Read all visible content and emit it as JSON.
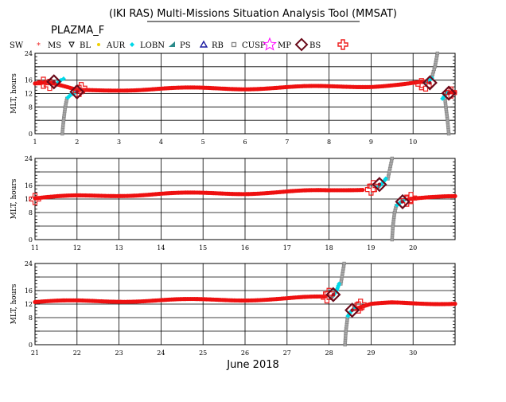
{
  "title": "(IKI RAS) Multi-Missions Situation Analysis Tool (MMSAT)",
  "mission": "PLAZMA_F",
  "xlabel": "June 2018",
  "ylabel": "MLT, hours",
  "legend": [
    {
      "label": "SW",
      "color": "#000000",
      "icon": "none"
    },
    {
      "label": "MS",
      "color": "#ee2222",
      "icon": "star-small"
    },
    {
      "label": "BL",
      "color": "#000000",
      "icon": "triangle-down-icon"
    },
    {
      "label": "AUR",
      "color": "#f0d000",
      "icon": "dot-icon"
    },
    {
      "label": "LOBN",
      "color": "#00d8e8",
      "icon": "diamond-small-icon"
    },
    {
      "label": "PS",
      "color": "#2a8a8a",
      "icon": "triangle-fill-icon"
    },
    {
      "label": "RB",
      "color": "#1a1aa0",
      "icon": "triangle-up-icon"
    },
    {
      "label": "CUSP",
      "color": "#888888",
      "icon": "square-small-icon"
    },
    {
      "label": "MP",
      "color": "#ff00ff",
      "icon": "star-outline-icon"
    },
    {
      "label": "BS",
      "color": "#6a0a1a",
      "icon": "diamond-outline-icon"
    },
    {
      "label": "",
      "color": "#ee1c1c",
      "icon": "cross-outline-icon"
    }
  ],
  "colors": {
    "ms": "#ee1010",
    "cusp": "#888888",
    "lobn": "#00d8e8",
    "mp": "#6a0a1a",
    "bs": "#ee1c1c",
    "grid": "#000000"
  },
  "chart_data": [
    {
      "type": "scatter",
      "panel": 1,
      "ylabel": "MLT, hours",
      "xlim": [
        1,
        11
      ],
      "ylim": [
        0,
        24
      ],
      "xticks": [
        1,
        2,
        3,
        4,
        5,
        6,
        7,
        8,
        9,
        10
      ],
      "yticks": [
        0,
        4,
        8,
        12,
        16,
        20,
        24
      ],
      "yticklabels": [
        "0",
        "",
        "8",
        "12",
        "16",
        "",
        "24"
      ],
      "ms_track": [
        [
          1.0,
          15.0
        ],
        [
          1.3,
          15.2
        ],
        [
          2.0,
          12.8
        ],
        [
          3.0,
          13.2
        ],
        [
          4.0,
          13.4
        ],
        [
          5.0,
          13.5
        ],
        [
          6.0,
          13.6
        ],
        [
          7.0,
          13.8
        ],
        [
          8.0,
          14.0
        ],
        [
          9.0,
          14.3
        ],
        [
          9.8,
          14.8
        ],
        [
          10.2,
          15.2
        ]
      ],
      "ms_track_late": [
        [
          10.8,
          12.4
        ],
        [
          11.0,
          12.2
        ]
      ],
      "cusp_tracks": [
        [
          [
            1.65,
            0
          ],
          [
            1.68,
            4
          ],
          [
            1.72,
            8
          ],
          [
            1.76,
            10.5
          ]
        ],
        [
          [
            10.85,
            0
          ],
          [
            10.82,
            4
          ],
          [
            10.78,
            8
          ],
          [
            10.76,
            10.5
          ]
        ],
        [
          [
            10.45,
            17
          ],
          [
            10.52,
            20
          ],
          [
            10.58,
            24
          ]
        ]
      ],
      "lobn_tracks": [
        [
          [
            1.78,
            10.8
          ],
          [
            1.85,
            11.6
          ],
          [
            1.95,
            12.2
          ]
        ],
        [
          [
            1.55,
            15.4
          ],
          [
            1.62,
            16.0
          ],
          [
            1.68,
            16.4
          ]
        ],
        [
          [
            10.28,
            15.2
          ],
          [
            10.38,
            15.8
          ],
          [
            10.45,
            16.6
          ]
        ],
        [
          [
            10.7,
            10.5
          ],
          [
            10.76,
            11.5
          ],
          [
            10.82,
            12.2
          ]
        ]
      ],
      "mp_crossings": [
        [
          1.45,
          15.5
        ],
        [
          2.0,
          12.5
        ],
        [
          10.4,
          15.2
        ],
        [
          10.85,
          12.1
        ]
      ],
      "bs_crossings": [
        [
          1.2,
          15.2
        ],
        [
          1.35,
          14.6
        ],
        [
          2.05,
          12.8
        ],
        [
          2.1,
          13.6
        ],
        [
          10.2,
          14.8
        ],
        [
          10.3,
          14.4
        ],
        [
          10.9,
          12.3
        ]
      ]
    },
    {
      "type": "scatter",
      "panel": 2,
      "ylabel": "MLT, hours",
      "xlim": [
        11,
        21
      ],
      "ylim": [
        0,
        24
      ],
      "xticks": [
        11,
        12,
        13,
        14,
        15,
        16,
        17,
        18,
        19,
        20
      ],
      "yticks": [
        0,
        4,
        8,
        12,
        16,
        20,
        24
      ],
      "yticklabels": [
        "0",
        "",
        "8",
        "12",
        "16",
        "",
        "24"
      ],
      "ms_track": [
        [
          11.0,
          12.2
        ],
        [
          12.0,
          12.8
        ],
        [
          13.0,
          13.2
        ],
        [
          14.0,
          13.5
        ],
        [
          15.0,
          13.6
        ],
        [
          16.0,
          13.8
        ],
        [
          17.0,
          14.1
        ],
        [
          18.0,
          14.4
        ],
        [
          18.8,
          15.0
        ]
      ],
      "ms_track_late": [
        [
          19.9,
          12.0
        ],
        [
          20.5,
          12.3
        ],
        [
          21.0,
          12.6
        ]
      ],
      "cusp_tracks": [
        [
          [
            19.5,
            0
          ],
          [
            19.52,
            4
          ],
          [
            19.56,
            8
          ],
          [
            19.6,
            10
          ]
        ],
        [
          [
            19.4,
            18
          ],
          [
            19.45,
            21
          ],
          [
            19.5,
            24
          ]
        ]
      ],
      "lobn_tracks": [
        [
          [
            19.18,
            15.6
          ],
          [
            19.28,
            16.8
          ],
          [
            19.35,
            18
          ]
        ],
        [
          [
            19.62,
            10.2
          ],
          [
            19.7,
            11.0
          ],
          [
            19.8,
            11.8
          ]
        ]
      ],
      "mp_crossings": [
        [
          19.2,
          16.3
        ],
        [
          19.75,
          11.2
        ]
      ],
      "bs_crossings": [
        [
          11.0,
          12.0
        ],
        [
          19.05,
          15.8
        ],
        [
          19.0,
          14.8
        ],
        [
          19.85,
          11.5
        ],
        [
          19.95,
          12.3
        ]
      ]
    },
    {
      "type": "scatter",
      "panel": 3,
      "ylabel": "MLT, hours",
      "xlim": [
        21,
        31
      ],
      "ylim": [
        0,
        24
      ],
      "xticks": [
        21,
        22,
        23,
        24,
        25,
        26,
        27,
        28,
        29,
        30
      ],
      "yticks": [
        0,
        4,
        8,
        12,
        16,
        20,
        24
      ],
      "yticklabels": [
        "0",
        "",
        "8",
        "12",
        "16",
        "",
        "24"
      ],
      "ms_track": [
        [
          21.0,
          12.6
        ],
        [
          22.0,
          12.8
        ],
        [
          23.0,
          13.0
        ],
        [
          24.0,
          13.1
        ],
        [
          25.0,
          13.2
        ],
        [
          26.0,
          13.4
        ],
        [
          27.0,
          13.6
        ],
        [
          27.9,
          14.0
        ]
      ],
      "ms_track_late": [
        [
          28.6,
          10.5
        ],
        [
          29.0,
          11.8
        ],
        [
          29.5,
          12.2
        ],
        [
          30.0,
          12.2
        ],
        [
          31.0,
          12.4
        ]
      ],
      "cusp_tracks": [
        [
          [
            28.38,
            0
          ],
          [
            28.4,
            4
          ],
          [
            28.44,
            8
          ]
        ],
        [
          [
            28.28,
            18
          ],
          [
            28.32,
            21
          ],
          [
            28.36,
            24
          ]
        ]
      ],
      "lobn_tracks": [
        [
          [
            28.08,
            14.2
          ],
          [
            28.18,
            16.0
          ],
          [
            28.24,
            18
          ]
        ],
        [
          [
            28.45,
            8.5
          ],
          [
            28.52,
            9.8
          ],
          [
            28.6,
            10.8
          ]
        ]
      ],
      "mp_crossings": [
        [
          28.1,
          14.8
        ],
        [
          28.55,
          10.2
        ]
      ],
      "bs_crossings": [
        [
          27.95,
          14.0
        ],
        [
          28.0,
          15.0
        ],
        [
          28.7,
          11.0
        ],
        [
          28.75,
          11.8
        ]
      ]
    }
  ]
}
